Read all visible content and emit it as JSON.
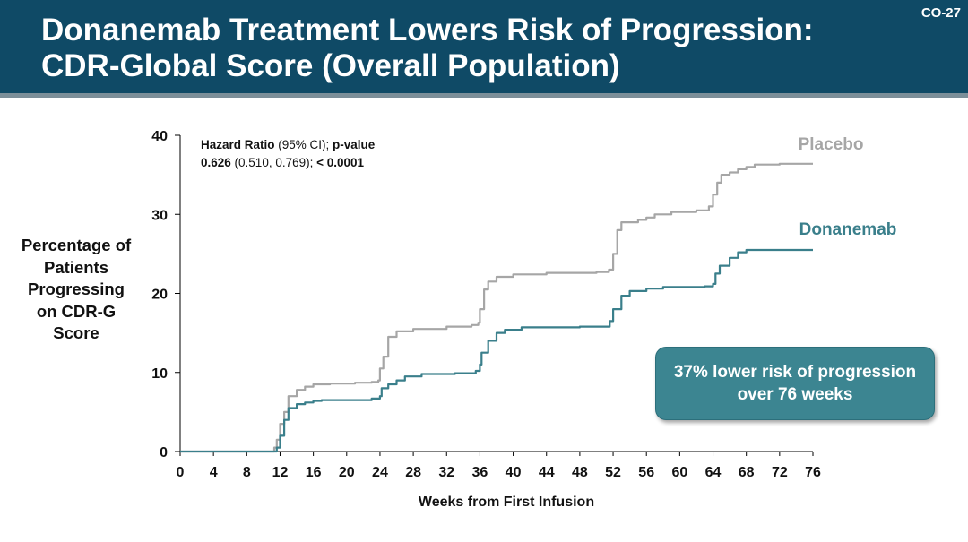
{
  "slide": {
    "title_line1": "Donanemab Treatment Lowers Risk of Progression:",
    "title_line2": "CDR-Global Score (Overall Population)",
    "slide_id": "CO-27"
  },
  "y_axis_label_lines": [
    "Percentage of",
    "Patients",
    "Progressing",
    "on CDR-G",
    "Score"
  ],
  "hazard_ratio": {
    "label_bold": "Hazard Ratio",
    "label_ci": " (95% CI); ",
    "label_p": "p-value",
    "value_bold": "0.626",
    "value_ci": " (0.510, 0.769); ",
    "value_p": "< 0.0001"
  },
  "callout": {
    "line1": "37% lower risk of progression",
    "line2": "over 76 weeks"
  },
  "colors": {
    "header": "#0f4a66",
    "placebo": "#a6a6a6",
    "donanemab": "#3a7f8b",
    "callout": "#3c8591"
  },
  "chart_data": {
    "type": "line",
    "xlabel": "Weeks from First Infusion",
    "ylabel": "Percentage of Patients Progressing on CDR-G Score",
    "xlim": [
      0,
      76
    ],
    "ylim": [
      0,
      40
    ],
    "x_ticks": [
      0,
      4,
      8,
      12,
      16,
      20,
      24,
      28,
      32,
      36,
      40,
      44,
      48,
      52,
      56,
      60,
      64,
      68,
      72,
      76
    ],
    "y_ticks": [
      0,
      10,
      20,
      30,
      40
    ],
    "grid": false,
    "series": [
      {
        "name": "Placebo",
        "color": "#a6a6a6",
        "points": [
          [
            0,
            0
          ],
          [
            11,
            0
          ],
          [
            11.3,
            0.5
          ],
          [
            11.6,
            1.5
          ],
          [
            12,
            3.5
          ],
          [
            12.5,
            5
          ],
          [
            13,
            7
          ],
          [
            14,
            7.8
          ],
          [
            15,
            8.2
          ],
          [
            16,
            8.5
          ],
          [
            18,
            8.6
          ],
          [
            21,
            8.7
          ],
          [
            23,
            8.8
          ],
          [
            23.8,
            9
          ],
          [
            24,
            10.5
          ],
          [
            24.4,
            12
          ],
          [
            25,
            14.5
          ],
          [
            26,
            15.2
          ],
          [
            28,
            15.5
          ],
          [
            32,
            15.8
          ],
          [
            35,
            16
          ],
          [
            35.8,
            16.3
          ],
          [
            36,
            18
          ],
          [
            36.5,
            20.5
          ],
          [
            37,
            21.5
          ],
          [
            38,
            22.1
          ],
          [
            40,
            22.4
          ],
          [
            44,
            22.6
          ],
          [
            50,
            22.7
          ],
          [
            51.5,
            23
          ],
          [
            52,
            25
          ],
          [
            52.5,
            28
          ],
          [
            53,
            29
          ],
          [
            55,
            29.3
          ],
          [
            56,
            29.6
          ],
          [
            57,
            30
          ],
          [
            59,
            30.3
          ],
          [
            62,
            30.5
          ],
          [
            63.5,
            31
          ],
          [
            64,
            32.5
          ],
          [
            64.5,
            34
          ],
          [
            65,
            35
          ],
          [
            66,
            35.3
          ],
          [
            67,
            35.7
          ],
          [
            68,
            36
          ],
          [
            69,
            36.3
          ],
          [
            72,
            36.4
          ],
          [
            76,
            36.4
          ]
        ]
      },
      {
        "name": "Donanemab",
        "color": "#3a7f8b",
        "points": [
          [
            0,
            0
          ],
          [
            11.3,
            0
          ],
          [
            11.6,
            0.5
          ],
          [
            12,
            2
          ],
          [
            12.5,
            4
          ],
          [
            13,
            5.5
          ],
          [
            14,
            6
          ],
          [
            15,
            6.2
          ],
          [
            16,
            6.4
          ],
          [
            17,
            6.5
          ],
          [
            21,
            6.5
          ],
          [
            23,
            6.7
          ],
          [
            24,
            7
          ],
          [
            24.2,
            8
          ],
          [
            25,
            8.5
          ],
          [
            26,
            9
          ],
          [
            27,
            9.5
          ],
          [
            29,
            9.8
          ],
          [
            33,
            9.9
          ],
          [
            35.5,
            10.2
          ],
          [
            36,
            11
          ],
          [
            36.2,
            12.5
          ],
          [
            37,
            14
          ],
          [
            38,
            15
          ],
          [
            39,
            15.4
          ],
          [
            41,
            15.7
          ],
          [
            48,
            15.8
          ],
          [
            51,
            15.8
          ],
          [
            51.6,
            16.5
          ],
          [
            52,
            18
          ],
          [
            53,
            19.7
          ],
          [
            54,
            20.3
          ],
          [
            56,
            20.6
          ],
          [
            58,
            20.8
          ],
          [
            63,
            20.9
          ],
          [
            64,
            21.2
          ],
          [
            64.3,
            22.5
          ],
          [
            64.8,
            23.5
          ],
          [
            66,
            24.5
          ],
          [
            67,
            25.2
          ],
          [
            68,
            25.5
          ],
          [
            72,
            25.5
          ],
          [
            76,
            25.5
          ]
        ]
      }
    ]
  }
}
